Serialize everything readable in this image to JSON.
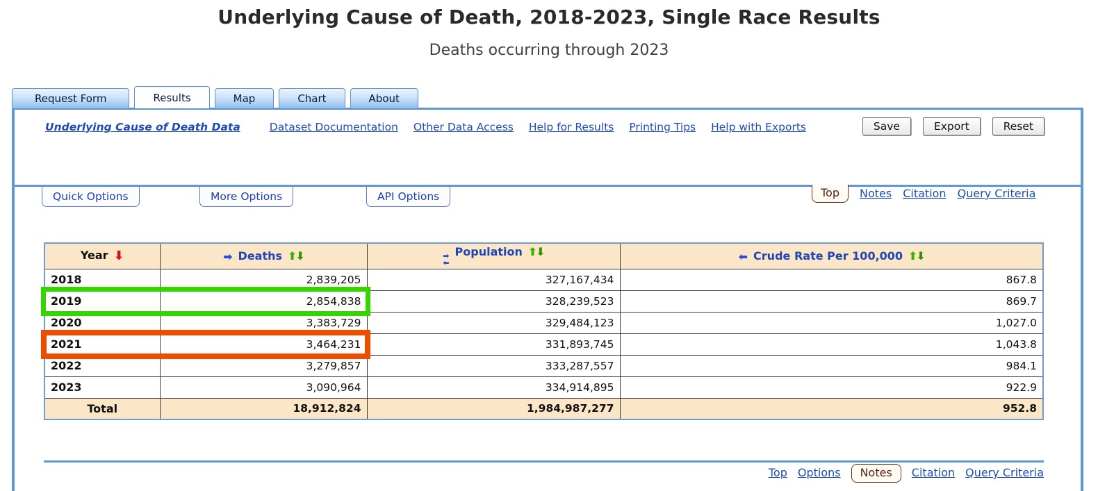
{
  "page": {
    "title": "Underlying Cause of Death, 2018-2023, Single Race Results",
    "subtitle": "Deaths occurring through 2023"
  },
  "tabs": [
    {
      "label": "Request Form",
      "active": false
    },
    {
      "label": "Results",
      "active": true
    },
    {
      "label": "Map",
      "active": false
    },
    {
      "label": "Chart",
      "active": false
    },
    {
      "label": "About",
      "active": false
    }
  ],
  "toolbar": {
    "dataset_link": "Underlying Cause of Death Data",
    "links": [
      "Dataset Documentation",
      "Other Data Access",
      "Help for Results",
      "Printing Tips",
      "Help with Exports"
    ],
    "buttons": {
      "save": "Save",
      "export": "Export",
      "reset": "Reset"
    }
  },
  "options_bar": {
    "tabs": {
      "quick": "Quick Options",
      "more": "More Options",
      "api": "API Options"
    },
    "boxed_link": "Top",
    "links": {
      "notes": "Notes",
      "citation": "Citation",
      "query": "Query Criteria"
    }
  },
  "icons": {
    "sort_down": "⬇",
    "sort_up": "⬆",
    "move_right": "➡",
    "move_left": "⬅"
  },
  "table": {
    "columns": [
      {
        "label": "Year",
        "sort": "descending-active"
      },
      {
        "label": "Deaths",
        "move": "right",
        "sort": "both"
      },
      {
        "label": "Population",
        "move": "both",
        "sort": "both"
      },
      {
        "label": "Crude Rate Per 100,000",
        "move": "left",
        "sort": "both"
      }
    ],
    "rows": [
      {
        "year": "2018",
        "deaths": "2,839,205",
        "population": "327,167,434",
        "crude_rate": "867.8",
        "highlight": "none"
      },
      {
        "year": "2019",
        "deaths": "2,854,838",
        "population": "328,239,523",
        "crude_rate": "869.7",
        "highlight": "green"
      },
      {
        "year": "2020",
        "deaths": "3,383,729",
        "population": "329,484,123",
        "crude_rate": "1,027.0",
        "highlight": "none"
      },
      {
        "year": "2021",
        "deaths": "3,464,231",
        "population": "331,893,745",
        "crude_rate": "1,043.8",
        "highlight": "orange"
      },
      {
        "year": "2022",
        "deaths": "3,279,857",
        "population": "333,287,557",
        "crude_rate": "984.1",
        "highlight": "none"
      },
      {
        "year": "2023",
        "deaths": "3,090,964",
        "population": "334,914,895",
        "crude_rate": "922.9",
        "highlight": "none"
      }
    ],
    "total_row": {
      "year": "Total",
      "deaths": "18,912,824",
      "population": "1,984,987,277",
      "crude_rate": "952.8"
    }
  },
  "footer": {
    "link_top": "Top",
    "link_options": "Options",
    "boxed_link": "Notes",
    "link_citation": "Citation",
    "link_query": "Query Criteria"
  },
  "colors": {
    "accent_blue": "#5e97d9",
    "link_blue": "#1f4db8",
    "header_bg": "#fce6c8",
    "highlight_green": "#35d500",
    "highlight_orange": "#f04c00",
    "boxed_link_maroon": "#703018"
  }
}
